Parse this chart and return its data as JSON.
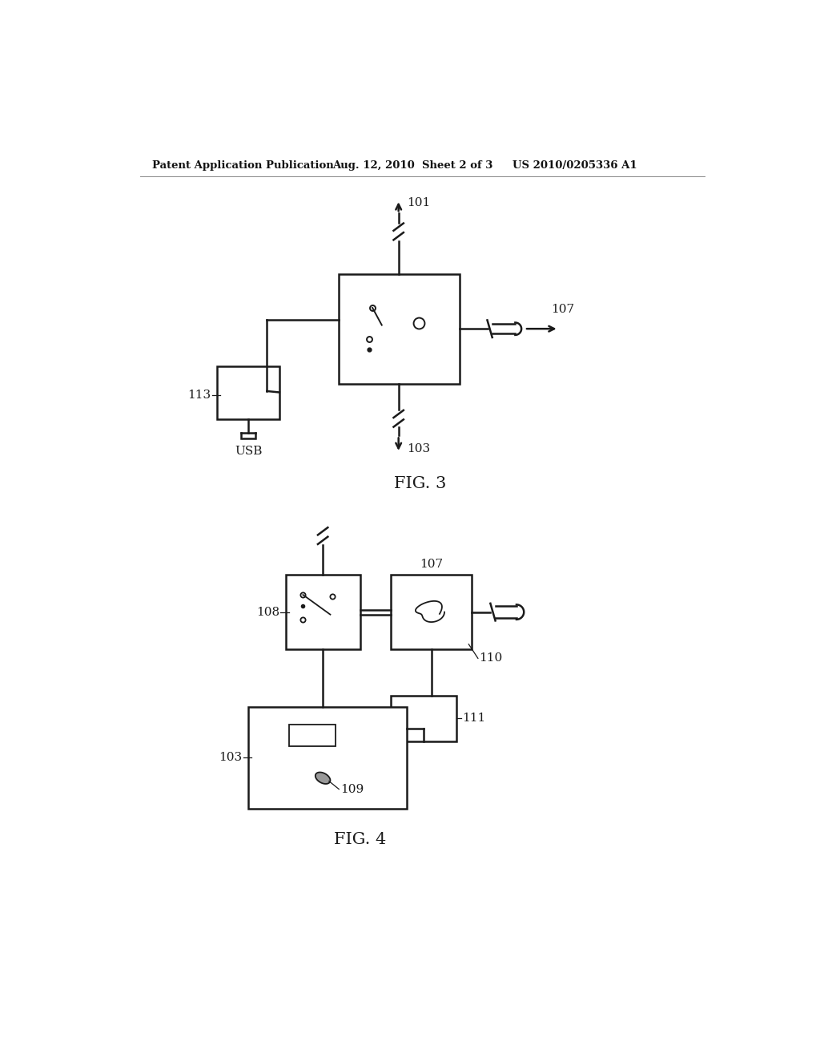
{
  "bg_color": "#ffffff",
  "header_left": "Patent Application Publication",
  "header_mid": "Aug. 12, 2010  Sheet 2 of 3",
  "header_right": "US 2010/0205336 A1",
  "fig3_label": "FIG. 3",
  "fig4_label": "FIG. 4",
  "lc": "#1a1a1a",
  "lw": 1.8
}
